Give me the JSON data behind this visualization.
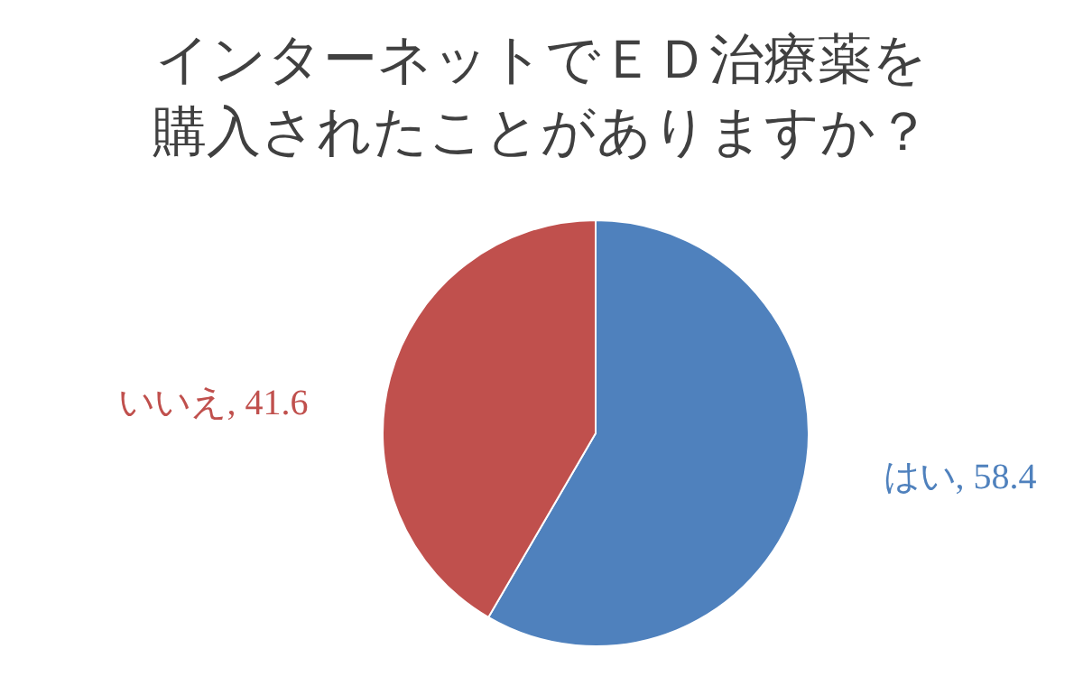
{
  "chart_data": {
    "type": "pie",
    "title": "インターネットでＥＤ治療薬を購入されたことがありますか？",
    "categories": [
      "はい",
      "いいえ"
    ],
    "values": [
      58.4,
      41.6
    ],
    "colors": [
      "#4f81bd",
      "#c0504d"
    ],
    "value_labels": [
      ", 58.4",
      ", 41.6"
    ]
  }
}
